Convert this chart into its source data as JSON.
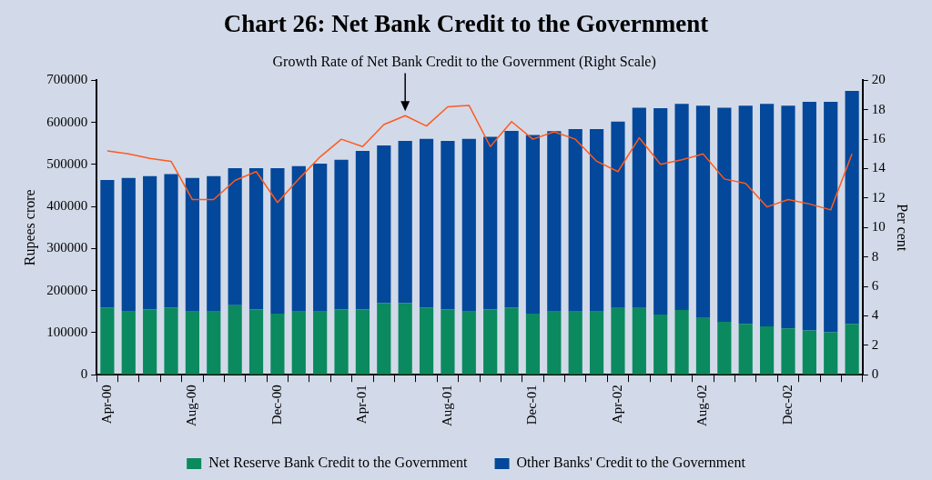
{
  "chart_data": {
    "type": "bar",
    "title": "Chart 26: Net Bank Credit to the Government",
    "ylabel": "Rupees crore",
    "y2label": "Per cent",
    "categories": [
      "Apr-00",
      null,
      null,
      null,
      "Aug-00",
      null,
      null,
      null,
      "Dec-00",
      null,
      null,
      null,
      "Apr-01",
      null,
      null,
      null,
      "Aug-01",
      null,
      null,
      null,
      "Dec-01",
      null,
      null,
      null,
      "Apr-02",
      null,
      null,
      null,
      "Aug-02",
      null,
      null,
      null,
      "Dec-02",
      null,
      null,
      null
    ],
    "stacked": true,
    "series": [
      {
        "name": "Net Reserve Bank Credit to the Government",
        "color": "#0a8a5e",
        "values": [
          160000,
          150000,
          155000,
          160000,
          150000,
          150000,
          165000,
          155000,
          145000,
          150000,
          150000,
          155000,
          155000,
          170000,
          170000,
          160000,
          155000,
          150000,
          155000,
          160000,
          145000,
          150000,
          150000,
          150000,
          159000,
          159000,
          143000,
          154000,
          135000,
          126000,
          121000,
          115000,
          110000,
          105000,
          101000,
          121000
        ]
      },
      {
        "name": "Other Banks' Credit to the Government",
        "color": "#03489a",
        "values": [
          303000,
          318000,
          317000,
          317000,
          318000,
          322000,
          326000,
          336000,
          346000,
          346000,
          352000,
          356000,
          377000,
          375000,
          386000,
          401000,
          401000,
          411000,
          411000,
          420000,
          425000,
          429000,
          434000,
          434000,
          443000,
          476000,
          491000,
          490000,
          505000,
          509000,
          519000,
          529000,
          530000,
          544000,
          548000,
          554000
        ]
      },
      {
        "type": "line",
        "axis": "y2",
        "color": "#ff5a1e",
        "values": [
          15.2,
          15.0,
          14.7,
          14.5,
          11.9,
          11.9,
          13.2,
          13.8,
          11.7,
          13.3,
          14.8,
          16.0,
          15.5,
          17.0,
          17.6,
          16.9,
          18.2,
          18.3,
          15.5,
          17.2,
          16.0,
          16.5,
          16.0,
          14.5,
          13.8,
          16.1,
          14.3,
          14.6,
          15.0,
          13.3,
          13.0,
          11.4,
          11.9,
          11.6,
          11.2,
          15.0
        ]
      }
    ],
    "ylim": [
      0,
      700000
    ],
    "yticks": [
      0,
      100000,
      200000,
      300000,
      400000,
      500000,
      600000,
      700000
    ],
    "y2lim": [
      0,
      20
    ],
    "y2ticks": [
      0,
      2,
      4,
      6,
      8,
      10,
      12,
      14,
      16,
      18,
      20
    ],
    "annotations": [
      "Growth Rate of Net Bank Credit to the Government (Right Scale)"
    ],
    "legend": "bottom",
    "grid": false,
    "marker": "none"
  }
}
